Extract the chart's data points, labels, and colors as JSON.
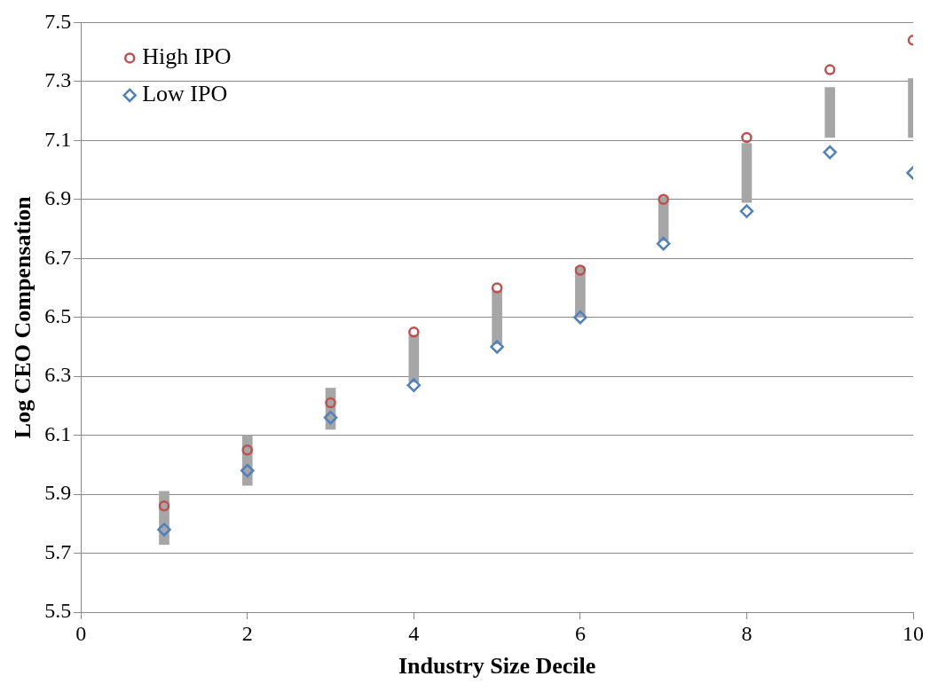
{
  "chart_data": {
    "type": "scatter",
    "xlabel": "Industry Size Decile",
    "ylabel": "Log CEO Compensation",
    "x": [
      1,
      2,
      3,
      4,
      5,
      6,
      7,
      8,
      9,
      10
    ],
    "series": [
      {
        "type": "bar",
        "color": "#a6a6a6",
        "base": [
          5.73,
          5.93,
          6.12,
          6.28,
          6.41,
          6.5,
          6.76,
          6.89,
          7.11,
          7.11
        ],
        "values": [
          0.18,
          0.17,
          0.14,
          0.16,
          0.18,
          0.17,
          0.15,
          0.2,
          0.17,
          0.2
        ]
      },
      {
        "name": "High IPO",
        "color": "#c0504d",
        "marker": "circle",
        "values": [
          5.86,
          6.05,
          6.21,
          6.45,
          6.6,
          6.66,
          6.9,
          7.11,
          7.34,
          7.44
        ]
      },
      {
        "name": "Low IPO",
        "color": "#4f81bd",
        "marker": "diamond",
        "values": [
          5.78,
          5.98,
          6.16,
          6.27,
          6.4,
          6.5,
          6.75,
          6.86,
          7.06,
          6.99
        ]
      }
    ],
    "xlim": [
      0,
      10
    ],
    "xticks": [
      0,
      2,
      4,
      6,
      8,
      10
    ],
    "ylim": [
      5.5,
      7.5
    ],
    "yticks": [
      5.5,
      5.7,
      5.9,
      6.1,
      6.3,
      6.5,
      6.7,
      6.9,
      7.1,
      7.3,
      7.5
    ],
    "grid": "y",
    "legend": "top left"
  }
}
